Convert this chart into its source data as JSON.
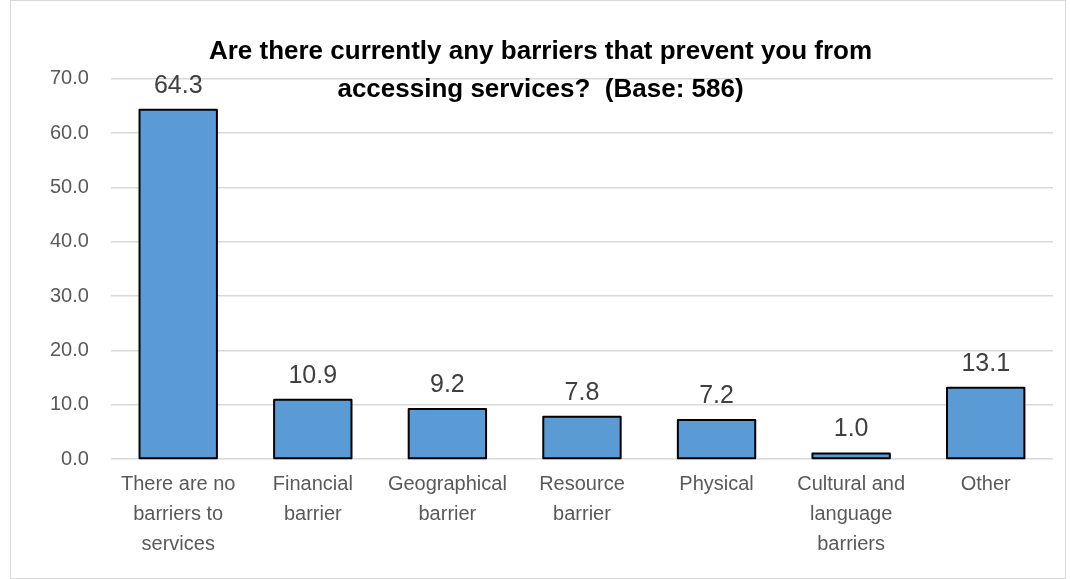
{
  "chart_data": {
    "type": "bar",
    "title": "Are there currently any barriers that prevent you from accessing services?  (Base: 586)",
    "categories": [
      "There are no barriers to services",
      "Financial barrier",
      "Geographical barrier",
      "Resource barrier",
      "Physical",
      "Cultural and language barriers",
      "Other"
    ],
    "values": [
      64.3,
      10.9,
      9.2,
      7.8,
      7.2,
      1.0,
      13.1
    ],
    "color": "#5b9bd5",
    "value_labels": [
      "64.3",
      "10.9",
      "9.2",
      "7.8",
      "7.2",
      "1.0",
      "13.1"
    ],
    "ylim": [
      0,
      70
    ],
    "yticks": [
      {
        "value": 0,
        "label": "0.0"
      },
      {
        "value": 10,
        "label": "10.0"
      },
      {
        "value": 20,
        "label": "20.0"
      },
      {
        "value": 30,
        "label": "30.0"
      },
      {
        "value": 40,
        "label": "40.0"
      },
      {
        "value": 50,
        "label": "50.0"
      },
      {
        "value": 60,
        "label": "60.0"
      },
      {
        "value": 70,
        "label": "70.0"
      }
    ],
    "grid": "y",
    "legend": false
  }
}
